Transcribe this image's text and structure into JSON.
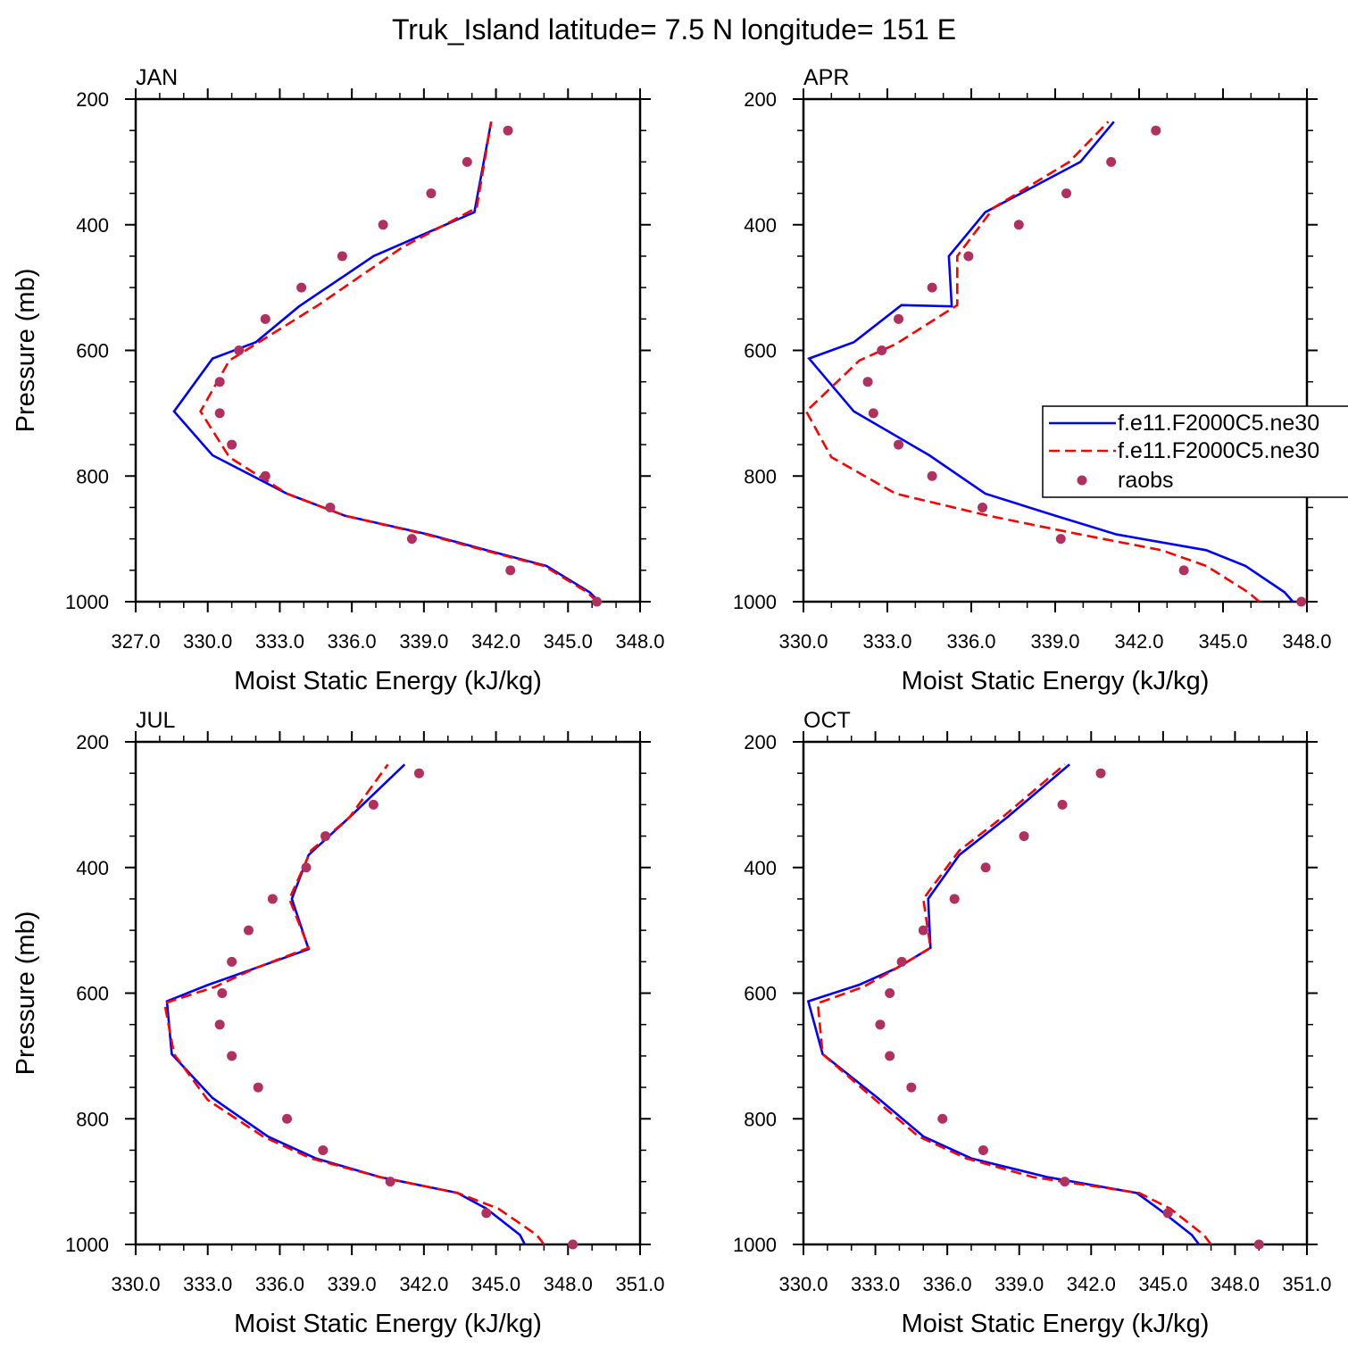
{
  "title": "Truk_Island  latitude= 7.5 N longitude= 151 E",
  "colors": {
    "model1": "#0000ff",
    "model2": "#ff0000",
    "obs": "#b03060",
    "axis": "#000000"
  },
  "legend": {
    "placement": "right, in APR panel (clipped by figure edge)",
    "entries": [
      {
        "label": "f.e11.F2000C5.ne30",
        "style": "solid",
        "color": "#0000ff"
      },
      {
        "label": "f.e11.F2000C5.ne30",
        "style": "dashed",
        "color": "#ff0000"
      },
      {
        "label": "raobs",
        "style": "dot",
        "color": "#b03060"
      }
    ]
  },
  "chart_data": [
    {
      "type": "line",
      "panel_label": "JAN",
      "xlabel": "Moist Static Energy (kJ/kg)",
      "ylabel": "Pressure (mb)",
      "xlim": [
        327,
        348
      ],
      "xticks": [
        "327.0",
        "330.0",
        "333.0",
        "336.0",
        "339.0",
        "342.0",
        "345.0",
        "348.0"
      ],
      "ylim": [
        1000,
        200
      ],
      "yticks": [
        "200",
        "400",
        "600",
        "800",
        "1000"
      ],
      "grid": false,
      "series": [
        {
          "style": "solid",
          "color": "#0000ff",
          "x": [
            346.3,
            345.9,
            344.1,
            341.6,
            339.2,
            335.7,
            333.3,
            330.2,
            328.6,
            330.2,
            332.0,
            333.8,
            336.9,
            341.1,
            341.8
          ],
          "y": [
            1000,
            985,
            943,
            918,
            893,
            863,
            828,
            767,
            697,
            613,
            587,
            530,
            450,
            380,
            236
          ]
        },
        {
          "style": "dashed",
          "color": "#ff0000",
          "x": [
            346.2,
            345.8,
            344.0,
            341.5,
            339.1,
            335.7,
            333.3,
            330.9,
            329.7,
            330.9,
            332.0,
            334.6,
            338.1,
            341.2,
            341.8
          ],
          "y": [
            1000,
            985,
            943,
            918,
            893,
            863,
            828,
            770,
            697,
            616,
            590,
            528,
            436,
            373,
            236
          ]
        },
        {
          "style": "dot",
          "color": "#b03060",
          "x": [
            346.2,
            342.6,
            338.5,
            335.1,
            332.4,
            331.0,
            330.5,
            330.5,
            331.3,
            332.4,
            333.9,
            335.6,
            337.3,
            339.3,
            340.8,
            342.5
          ],
          "y": [
            1000,
            950,
            900,
            850,
            800,
            750,
            700,
            650,
            600,
            550,
            500,
            450,
            400,
            350,
            300,
            250
          ]
        }
      ]
    },
    {
      "type": "line",
      "panel_label": "APR",
      "xlabel": "Moist Static Energy (kJ/kg)",
      "ylabel": "",
      "xlim": [
        330,
        348
      ],
      "xticks": [
        "330.0",
        "333.0",
        "336.0",
        "339.0",
        "342.0",
        "345.0",
        "348.0"
      ],
      "ylim": [
        1000,
        200
      ],
      "yticks": [
        "200",
        "400",
        "600",
        "800",
        "1000"
      ],
      "grid": false,
      "series": [
        {
          "style": "solid",
          "color": "#0000ff",
          "x": [
            347.5,
            347.2,
            345.8,
            344.4,
            341.2,
            339.0,
            336.5,
            334.5,
            331.8,
            330.2,
            331.8,
            333.5,
            335.3,
            335.2,
            336.5,
            339.9,
            341.1
          ],
          "y": [
            1000,
            985,
            943,
            918,
            893,
            863,
            828,
            767,
            697,
            613,
            587,
            528,
            530,
            450,
            380,
            300,
            236
          ]
        },
        {
          "style": "dashed",
          "color": "#ff0000",
          "x": [
            346.3,
            345.9,
            344.4,
            342.8,
            339.9,
            336.6,
            333.3,
            331.0,
            330.1,
            332.0,
            333.3,
            335.5,
            335.5,
            336.8,
            339.5,
            340.9
          ],
          "y": [
            1000,
            985,
            943,
            918,
            893,
            863,
            828,
            770,
            697,
            616,
            590,
            528,
            450,
            373,
            300,
            236
          ]
        },
        {
          "style": "dot",
          "color": "#b03060",
          "x": [
            347.8,
            343.6,
            339.2,
            336.4,
            334.6,
            333.4,
            332.5,
            332.3,
            332.8,
            333.4,
            334.6,
            335.9,
            337.7,
            339.4,
            341.0,
            342.6
          ],
          "y": [
            1000,
            950,
            900,
            850,
            800,
            750,
            700,
            650,
            600,
            550,
            500,
            450,
            400,
            350,
            300,
            250
          ]
        }
      ]
    },
    {
      "type": "line",
      "panel_label": "JUL",
      "xlabel": "Moist Static Energy (kJ/kg)",
      "ylabel": "Pressure (mb)",
      "xlim": [
        330,
        351
      ],
      "xticks": [
        "330.0",
        "333.0",
        "336.0",
        "339.0",
        "342.0",
        "345.0",
        "348.0",
        "351.0"
      ],
      "ylim": [
        1000,
        200
      ],
      "yticks": [
        "200",
        "400",
        "600",
        "800",
        "1000"
      ],
      "grid": false,
      "series": [
        {
          "style": "solid",
          "color": "#0000ff",
          "x": [
            346.2,
            346.0,
            344.6,
            343.4,
            340.2,
            337.5,
            335.5,
            333.2,
            331.5,
            331.3,
            333.0,
            335.0,
            337.2,
            336.5,
            337.2,
            338.9,
            341.2
          ],
          "y": [
            1000,
            985,
            943,
            918,
            893,
            863,
            828,
            767,
            697,
            613,
            587,
            560,
            530,
            450,
            380,
            320,
            236
          ]
        },
        {
          "style": "dashed",
          "color": "#ff0000",
          "x": [
            347.0,
            346.7,
            345.1,
            343.4,
            340.2,
            337.3,
            335.3,
            333.0,
            331.6,
            331.2,
            333.3,
            335.0,
            337.2,
            336.4,
            337.3,
            338.9,
            340.5
          ],
          "y": [
            1000,
            985,
            943,
            918,
            893,
            863,
            828,
            770,
            697,
            616,
            590,
            560,
            528,
            450,
            373,
            320,
            236
          ]
        },
        {
          "style": "dot",
          "color": "#b03060",
          "x": [
            348.2,
            344.6,
            340.6,
            337.8,
            336.3,
            335.1,
            334.0,
            333.5,
            333.6,
            334.0,
            334.7,
            335.7,
            337.1,
            337.9,
            339.9,
            341.8
          ],
          "y": [
            1000,
            950,
            900,
            850,
            800,
            750,
            700,
            650,
            600,
            550,
            500,
            450,
            400,
            350,
            300,
            250
          ]
        }
      ]
    },
    {
      "type": "line",
      "panel_label": "OCT",
      "xlabel": "Moist Static Energy (kJ/kg)",
      "ylabel": "",
      "xlim": [
        330,
        351
      ],
      "xticks": [
        "330.0",
        "333.0",
        "336.0",
        "339.0",
        "342.0",
        "345.0",
        "348.0",
        "351.0"
      ],
      "ylim": [
        1000,
        200
      ],
      "yticks": [
        "200",
        "400",
        "600",
        "800",
        "1000"
      ],
      "grid": false,
      "series": [
        {
          "style": "solid",
          "color": "#0000ff",
          "x": [
            346.5,
            346.2,
            344.8,
            343.9,
            340.2,
            337.0,
            335.0,
            333.1,
            330.8,
            330.2,
            332.3,
            333.9,
            335.3,
            335.2,
            336.5,
            338.5,
            341.1
          ],
          "y": [
            1000,
            985,
            943,
            918,
            893,
            863,
            828,
            767,
            697,
            613,
            587,
            560,
            528,
            450,
            380,
            320,
            236
          ]
        },
        {
          "style": "dashed",
          "color": "#ff0000",
          "x": [
            347.0,
            346.7,
            345.3,
            344.0,
            339.6,
            336.8,
            334.8,
            333.0,
            330.8,
            330.6,
            332.5,
            333.9,
            335.3,
            335.0,
            336.5,
            338.3,
            340.9
          ],
          "y": [
            1000,
            985,
            943,
            918,
            893,
            863,
            828,
            770,
            697,
            616,
            590,
            560,
            528,
            450,
            373,
            320,
            236
          ]
        },
        {
          "style": "dot",
          "color": "#b03060",
          "x": [
            349.0,
            345.2,
            340.9,
            337.5,
            335.8,
            334.5,
            333.6,
            333.2,
            333.6,
            334.1,
            335.0,
            336.3,
            337.6,
            339.2,
            340.8,
            342.4
          ],
          "y": [
            1000,
            950,
            900,
            850,
            800,
            750,
            700,
            650,
            600,
            550,
            500,
            450,
            400,
            350,
            300,
            250
          ]
        }
      ]
    }
  ]
}
